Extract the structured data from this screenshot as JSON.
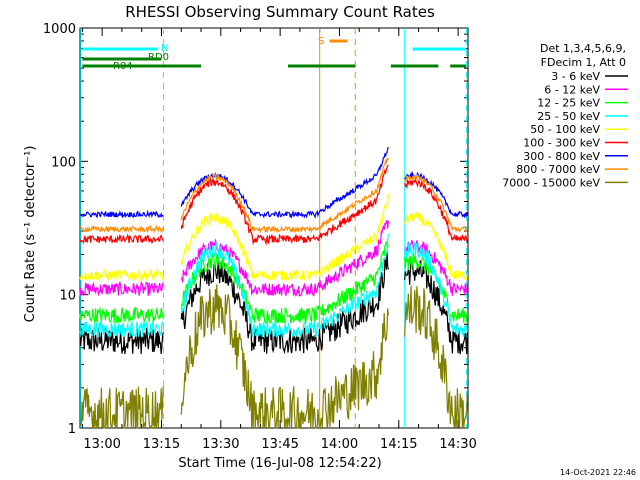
{
  "chart_data": {
    "type": "line",
    "title": "RHESSI Observing Summary Count Rates",
    "xlabel": "Start Time (16-Jul-08 12:54:22)",
    "ylabel": "Count Rate (s⁻¹ detector⁻¹)",
    "y_scale": "log",
    "ylim": [
      1,
      1000
    ],
    "xlim_minutes": [
      54.4,
      152.5
    ],
    "x_tick_labels": [
      "13:00",
      "13:15",
      "13:30",
      "13:45",
      "14:00",
      "14:15",
      "14:30"
    ],
    "x_tick_minutes": [
      60,
      75,
      90,
      105,
      120,
      135,
      150
    ],
    "y_tick_labels": [
      "1",
      "10",
      "100",
      "1000"
    ],
    "y_tick_values": [
      1,
      10,
      100,
      1000
    ],
    "legend_header": [
      "Det 1,3,4,5,6,9,",
      "FDecim 1, Att 0"
    ],
    "timestamp": "14-Oct-2021 22:46",
    "series": [
      {
        "name": "3 - 6 keV",
        "color": "#000000",
        "base": 4.5,
        "peak": 15,
        "noise": 0.1
      },
      {
        "name": "6 - 12 keV",
        "color": "#ff00ff",
        "base": 11,
        "peak": 23,
        "noise": 0.05
      },
      {
        "name": "12 - 25 keV",
        "color": "#00ff00",
        "base": 7,
        "peak": 18,
        "noise": 0.06
      },
      {
        "name": "25 - 50 keV",
        "color": "#00ffff",
        "base": 5.5,
        "peak": 22,
        "noise": 0.06
      },
      {
        "name": "50 - 100 keV",
        "color": "#ffff00",
        "base": 14,
        "peak": 38,
        "noise": 0.04
      },
      {
        "name": "100 - 300 keV",
        "color": "#ff0000",
        "base": 26,
        "peak": 70,
        "noise": 0.03
      },
      {
        "name": "300 - 800 keV",
        "color": "#0000ff",
        "base": 40,
        "peak": 78,
        "noise": 0.02
      },
      {
        "name": "800 - 7000 keV",
        "color": "#ff8c00",
        "base": 31,
        "peak": 76,
        "noise": 0.02
      },
      {
        "name": "7000 - 15000 keV",
        "color": "#808000",
        "base": 1.3,
        "peak": 8,
        "noise": 0.2
      }
    ],
    "segments_minutes": [
      [
        54.4,
        75.5
      ],
      [
        80,
        132.5
      ],
      [
        136.5,
        152.5
      ]
    ],
    "peak_minutes": [
      88.5,
      139
    ],
    "flags": [
      {
        "label": "N",
        "color": "#00ffff",
        "segments_minutes": [
          [
            55,
            74
          ],
          [
            138.5,
            152
          ]
        ]
      },
      {
        "label": "S",
        "color": "#ff8c00",
        "segments_minutes": [
          [
            117.5,
            122
          ]
        ]
      },
      {
        "label": "RD0",
        "color": "#008000",
        "segments_minutes": [
          [
            55,
            75
          ]
        ]
      },
      {
        "label": "R04",
        "color": "#008000",
        "segments_minutes": [
          [
            55,
            85
          ],
          [
            107,
            124
          ],
          [
            133,
            145
          ],
          [
            148,
            152
          ]
        ]
      }
    ],
    "vertical_lines": [
      {
        "minute": 54.6,
        "color": "#00ffff",
        "style": "solid"
      },
      {
        "minute": 75.5,
        "color": "#00ffff",
        "style": "dashed"
      },
      {
        "minute": 136.5,
        "color": "#00ffff",
        "style": "solid"
      },
      {
        "minute": 152.1,
        "color": "#00ffff",
        "style": "dashed"
      },
      {
        "minute": 115.0,
        "color": "#ff8c00",
        "style": "solid"
      },
      {
        "minute": 124.0,
        "color": "#ff8c00",
        "style": "dashed"
      }
    ]
  }
}
